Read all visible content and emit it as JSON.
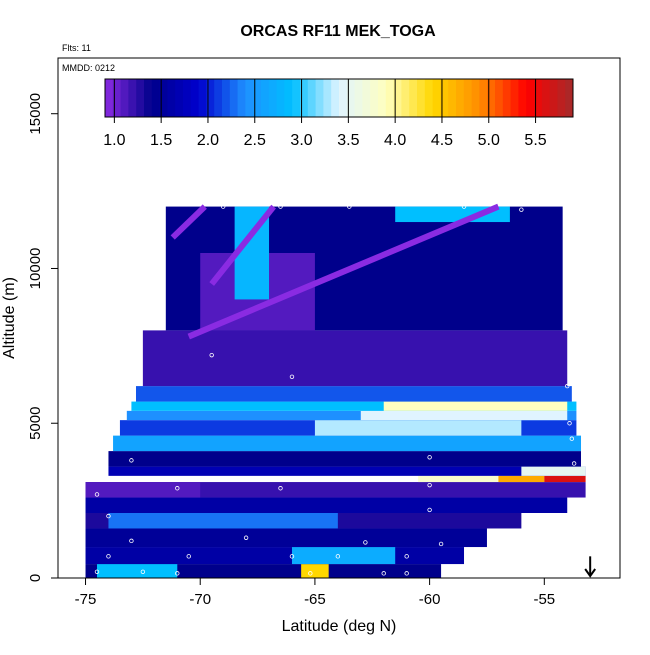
{
  "chart_data": {
    "type": "heatmap",
    "title": "ORCAS RF11 MEK_TOGA",
    "notes": {
      "flights": "Flts: 11",
      "date": "MMDD: 0212"
    },
    "xlabel": "Latitude (deg N)",
    "ylabel": "Altitude (m)",
    "xlim": [
      -76.2,
      -51.7
    ],
    "ylim": [
      0,
      16800
    ],
    "x_ticks": [
      -75,
      -70,
      -65,
      -60,
      -55
    ],
    "x_tick_labels": [
      "-75",
      "-70",
      "-65",
      "-60",
      "-55"
    ],
    "y_ticks": [
      0,
      5000,
      10000,
      15000
    ],
    "y_tick_labels": [
      "0",
      "5000",
      "10000",
      "15000"
    ],
    "colorbar": {
      "ticks": [
        1.0,
        1.5,
        2.0,
        2.5,
        3.0,
        3.5,
        4.0,
        4.5,
        5.0,
        5.5
      ],
      "tick_labels": [
        "1.0",
        "1.5",
        "2.0",
        "2.5",
        "3.0",
        "3.5",
        "4.0",
        "4.5",
        "5.0",
        "5.5"
      ],
      "range": [
        0.9,
        5.9
      ],
      "colors": [
        "#8a2be2",
        "#00008b",
        "#0000cd",
        "#1e90ff",
        "#00bfff",
        "#e0f4ff",
        "#ffffc0",
        "#ffd700",
        "#ff8c00",
        "#ff0000",
        "#a52a2a"
      ]
    },
    "bands": [
      {
        "alt": [
          0,
          450
        ],
        "lat": [
          -75.0,
          -59.5
        ],
        "value": 1.4
      },
      {
        "alt": [
          0,
          450
        ],
        "lat": [
          -74.5,
          -71.0
        ],
        "value": 2.9
      },
      {
        "alt": [
          0,
          450
        ],
        "lat": [
          -65.6,
          -64.4
        ],
        "value": 4.4
      },
      {
        "alt": [
          450,
          1000
        ],
        "lat": [
          -75.0,
          -58.5
        ],
        "value": 1.6
      },
      {
        "alt": [
          450,
          1000
        ],
        "lat": [
          -66.0,
          -61.5
        ],
        "value": 2.7
      },
      {
        "alt": [
          1000,
          1600
        ],
        "lat": [
          -75.0,
          -57.5
        ],
        "value": 1.5
      },
      {
        "alt": [
          1600,
          2100
        ],
        "lat": [
          -75.0,
          -56.0
        ],
        "value": 1.3
      },
      {
        "alt": [
          1600,
          2100
        ],
        "lat": [
          -74.0,
          -64.0
        ],
        "value": 2.3
      },
      {
        "alt": [
          2100,
          2600
        ],
        "lat": [
          -75.0,
          -54.0
        ],
        "value": 1.6
      },
      {
        "alt": [
          2600,
          3100
        ],
        "lat": [
          -75.0,
          -53.2
        ],
        "value": 1.2
      },
      {
        "alt": [
          2600,
          3100
        ],
        "lat": [
          -75.0,
          -70.0
        ],
        "value": 1.1
      },
      {
        "alt": [
          3100,
          3300
        ],
        "lat": [
          -60.5,
          -53.2
        ],
        "value": 3.8
      },
      {
        "alt": [
          3100,
          3300
        ],
        "lat": [
          -57.0,
          -55.0
        ],
        "value": 4.7
      },
      {
        "alt": [
          3100,
          3300
        ],
        "lat": [
          -55.0,
          -53.2
        ],
        "value": 5.6
      },
      {
        "alt": [
          3300,
          3600
        ],
        "lat": [
          -74.0,
          -53.2
        ],
        "value": 1.7
      },
      {
        "alt": [
          3300,
          3600
        ],
        "lat": [
          -56.0,
          -53.2
        ],
        "value": 3.5
      },
      {
        "alt": [
          3600,
          4100
        ],
        "lat": [
          -74.0,
          -53.4
        ],
        "value": 1.4
      },
      {
        "alt": [
          4100,
          4600
        ],
        "lat": [
          -73.8,
          -53.4
        ],
        "value": 2.6
      },
      {
        "alt": [
          4600,
          5100
        ],
        "lat": [
          -73.5,
          -53.6
        ],
        "value": 2.1
      },
      {
        "alt": [
          4600,
          5100
        ],
        "lat": [
          -65.0,
          -56.0
        ],
        "value": 3.3
      },
      {
        "alt": [
          5100,
          5400
        ],
        "lat": [
          -73.2,
          -53.6
        ],
        "value": 2.4
      },
      {
        "alt": [
          5100,
          5400
        ],
        "lat": [
          -63.0,
          -54.0
        ],
        "value": 3.4
      },
      {
        "alt": [
          5400,
          5700
        ],
        "lat": [
          -73.0,
          -53.6
        ],
        "value": 2.9
      },
      {
        "alt": [
          5400,
          5700
        ],
        "lat": [
          -62.0,
          -54.0
        ],
        "value": 3.9
      },
      {
        "alt": [
          5700,
          6200
        ],
        "lat": [
          -72.8,
          -53.8
        ],
        "value": 2.2
      },
      {
        "alt": [
          6200,
          8000
        ],
        "lat": [
          -72.5,
          -54.0
        ],
        "value": 1.2
      },
      {
        "alt": [
          8000,
          12000
        ],
        "lat": [
          -71.5,
          -54.2
        ],
        "value": 1.4
      },
      {
        "alt": [
          8000,
          10500
        ],
        "lat": [
          -70.0,
          -65.0
        ],
        "value": 1.1
      },
      {
        "alt": [
          9000,
          12000
        ],
        "lat": [
          -68.5,
          -67.0
        ],
        "value": 2.8
      },
      {
        "alt": [
          11500,
          12000
        ],
        "lat": [
          -61.5,
          -56.5
        ],
        "value": 2.9
      }
    ],
    "observation_points": [
      [
        -74.5,
        200
      ],
      [
        -72.5,
        200
      ],
      [
        -71.0,
        150
      ],
      [
        -65.2,
        150
      ],
      [
        -62.0,
        150
      ],
      [
        -61.0,
        150
      ],
      [
        -74.0,
        700
      ],
      [
        -70.5,
        700
      ],
      [
        -66.0,
        700
      ],
      [
        -64.0,
        700
      ],
      [
        -61.0,
        700
      ],
      [
        -73.0,
        1200
      ],
      [
        -68.0,
        1300
      ],
      [
        -62.8,
        1150
      ],
      [
        -59.5,
        1100
      ],
      [
        -74.0,
        2000
      ],
      [
        -60.0,
        2200
      ],
      [
        -53.8,
        2300
      ],
      [
        -74.5,
        2700
      ],
      [
        -71.0,
        2900
      ],
      [
        -66.5,
        2900
      ],
      [
        -60.0,
        3000
      ],
      [
        -73.0,
        3800
      ],
      [
        -60.0,
        3900
      ],
      [
        -53.7,
        3700
      ],
      [
        -53.8,
        4500
      ],
      [
        -53.9,
        5000
      ],
      [
        -54.0,
        6200
      ],
      [
        -69.5,
        7200
      ],
      [
        -66.0,
        6500
      ],
      [
        -69.0,
        12000
      ],
      [
        -66.5,
        12000
      ],
      [
        -63.5,
        12000
      ],
      [
        -58.5,
        12000
      ],
      [
        -56.0,
        11900
      ],
      [
        -54.0,
        11900
      ]
    ],
    "cruise_lines": [
      {
        "from": [
          -71.2,
          11000
        ],
        "to": [
          -69.8,
          12000
        ]
      },
      {
        "from": [
          -69.5,
          9500
        ],
        "to": [
          -66.8,
          12000
        ]
      },
      {
        "from": [
          -70.5,
          7800
        ],
        "to": [
          -57.0,
          12000
        ]
      }
    ],
    "marker": {
      "lat": -53.0,
      "alt": 700,
      "symbol": "down-arrow"
    }
  }
}
